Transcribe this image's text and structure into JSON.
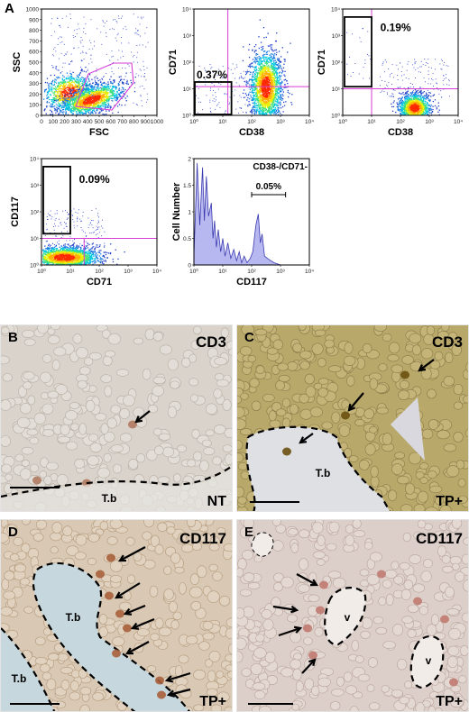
{
  "figure": {
    "panel_letters": [
      "A",
      "B",
      "C",
      "D",
      "E"
    ],
    "plots": [
      {
        "id": "fsc-ssc",
        "xlabel": "FSC",
        "ylabel": "SSC",
        "x_ticks": [
          "0",
          "100",
          "200",
          "300",
          "400",
          "500",
          "600",
          "700",
          "800",
          "900",
          "1000"
        ],
        "y_ticks": [
          "0",
          "100",
          "200",
          "300",
          "400",
          "500",
          "600",
          "700",
          "800",
          "900",
          "1000"
        ],
        "gate": "polygon",
        "percent": ""
      },
      {
        "id": "cd38-cd71-1",
        "xlabel": "CD38",
        "ylabel": "CD71",
        "x_ticks": [
          "10⁰",
          "10¹",
          "10²",
          "10³",
          "10⁴"
        ],
        "y_ticks": [
          "10⁰",
          "10¹",
          "10²",
          "10³",
          "10⁴"
        ],
        "percent": "0.37%"
      },
      {
        "id": "cd38-cd71-2",
        "xlabel": "CD38",
        "ylabel": "CD71",
        "x_ticks": [
          "10⁰",
          "10¹",
          "10²",
          "10³",
          "10⁴"
        ],
        "y_ticks": [
          "10⁰",
          "10¹",
          "10²",
          "10³",
          "10⁴"
        ],
        "percent": "0.19%"
      },
      {
        "id": "cd71-cd117",
        "xlabel": "CD71",
        "ylabel": "CD117",
        "x_ticks": [
          "10⁰",
          "10¹",
          "10²",
          "10³",
          "10⁴"
        ],
        "y_ticks": [
          "10⁰",
          "10¹",
          "10²",
          "10³",
          "10⁴"
        ],
        "percent": "0.09%"
      },
      {
        "id": "cd117-histogram",
        "xlabel": "CD117",
        "ylabel": "Cell Number",
        "title": "CD38-/CD71-",
        "x_ticks": [
          "10⁰",
          "10¹",
          "10²",
          "10³",
          "10⁴"
        ],
        "y_ticks": [
          "0",
          "0.5",
          "1",
          "1.5",
          "2"
        ],
        "percent": "0.05%"
      }
    ],
    "micrographs": [
      {
        "id": "B",
        "stain": "CD3",
        "corner_label": "NT",
        "regions": [
          "T.b"
        ],
        "bg": "#d9d3cc"
      },
      {
        "id": "C",
        "stain": "CD3",
        "corner_label": "TP+",
        "regions": [
          "T.b"
        ],
        "bg": "#b8a86a"
      },
      {
        "id": "D",
        "stain": "CD117",
        "corner_label": "TP+",
        "regions": [
          "T.b",
          "T.b"
        ],
        "bg": "#d8c8b4"
      },
      {
        "id": "E",
        "stain": "CD117",
        "corner_label": "TP+",
        "regions": [
          "v",
          "v"
        ],
        "bg": "#dccfc9"
      }
    ]
  },
  "chart_data": [
    {
      "type": "scatter",
      "xlabel": "FSC",
      "ylabel": "SSC",
      "xlim": [
        0,
        1000
      ],
      "ylim": [
        0,
        1000
      ],
      "series": [
        {
          "x": [
            400
          ],
          "y": [
            180
          ]
        }
      ]
    },
    {
      "type": "scatter",
      "xlabel": "CD38",
      "ylabel": "CD71",
      "xscale": "log",
      "yscale": "log",
      "xlim": [
        1,
        10000
      ],
      "ylim": [
        1,
        10000
      ],
      "gate_percent": "0.37%",
      "series": [
        {
          "x": [
            300
          ],
          "y": [
            12
          ]
        }
      ]
    },
    {
      "type": "scatter",
      "xlabel": "CD38",
      "ylabel": "CD71",
      "xscale": "log",
      "yscale": "log",
      "xlim": [
        1,
        10000
      ],
      "ylim": [
        1,
        10000
      ],
      "gate_percent": "0.19%",
      "series": [
        {
          "x": [
            300
          ],
          "y": [
            2
          ]
        }
      ]
    },
    {
      "type": "scatter",
      "xlabel": "CD71",
      "ylabel": "CD117",
      "xscale": "log",
      "yscale": "log",
      "xlim": [
        1,
        10000
      ],
      "ylim": [
        1,
        10000
      ],
      "gate_percent": "0.09%",
      "series": [
        {
          "x": [
            6
          ],
          "y": [
            2
          ]
        }
      ]
    },
    {
      "type": "area",
      "title": "CD38-/CD71-",
      "xlabel": "CD117",
      "ylabel": "Cell Number",
      "xscale": "log",
      "xlim": [
        1,
        10000
      ],
      "ylim": [
        0,
        2.4
      ],
      "gate_percent": "0.05%",
      "x": [
        1,
        1.3,
        1.6,
        2,
        2.3,
        2.7,
        3.2,
        4,
        4.6,
        5.2,
        6,
        7,
        8.5,
        10,
        12,
        15,
        19,
        24,
        30,
        37,
        45,
        55,
        70,
        90,
        110,
        140,
        170,
        200,
        230,
        280,
        350,
        450,
        600,
        1000,
        10000
      ],
      "y": [
        0.2,
        2.3,
        0.9,
        2.2,
        1.0,
        2.0,
        1.1,
        1.4,
        0.6,
        1.0,
        0.4,
        0.8,
        0.3,
        0.6,
        0.2,
        0.5,
        0.15,
        0.35,
        0.1,
        0.3,
        0.05,
        0.2,
        0.05,
        0.15,
        0.3,
        0.9,
        1.15,
        0.5,
        0.7,
        0.2,
        0.15,
        0.1,
        0.05,
        0,
        0
      ]
    }
  ]
}
